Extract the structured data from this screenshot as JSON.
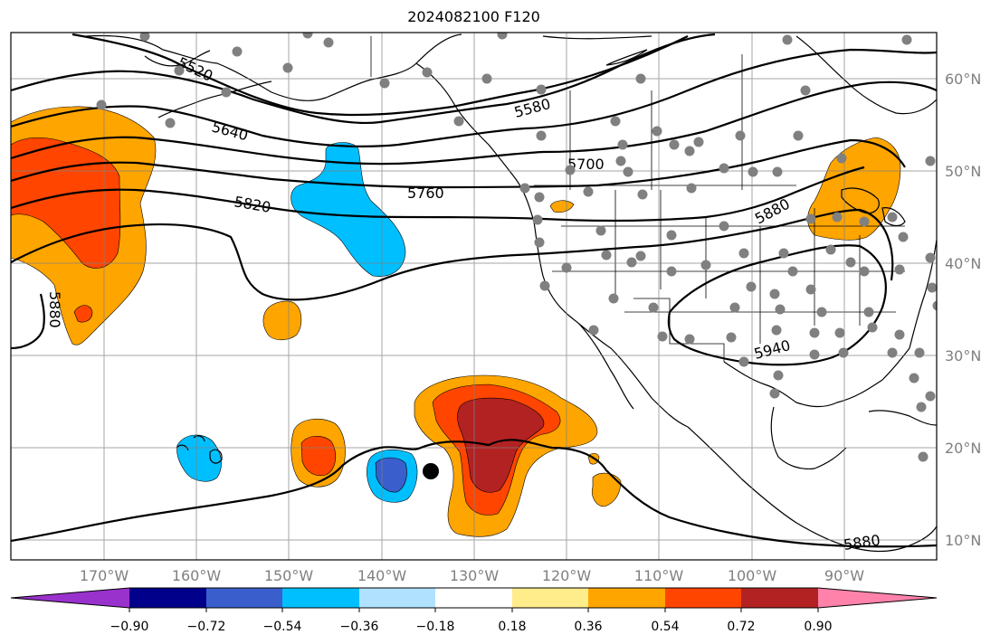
{
  "title": "2024082100 F120",
  "map": {
    "lon_range": [
      -180,
      -80
    ],
    "lat_range": [
      8,
      65
    ],
    "grid": true,
    "lon_labels": [
      "170°W",
      "160°W",
      "150°W",
      "140°W",
      "130°W",
      "120°W",
      "110°W",
      "100°W",
      "90°W"
    ],
    "lat_labels": [
      "60°N",
      "50°N",
      "40°N",
      "30°N",
      "20°N",
      "10°N"
    ],
    "contour_labels": [
      "5520",
      "5580",
      "5640",
      "5700",
      "5760",
      "5820",
      "5880",
      "5880",
      "5940",
      "5880"
    ],
    "colors": {
      "c_m090": "#9932cc",
      "c_m072": "#00008b",
      "c_m054": "#3a5fcd",
      "c_m036": "#00bfff",
      "c_m018": "#b0e2ff",
      "c_0": "#ffffff",
      "c_p018": "#ffec8b",
      "c_p036": "#ffa500",
      "c_p054": "#ff4500",
      "c_p072": "#b22222",
      "c_p090": "#ff82ab",
      "station": "#808080",
      "marker": "#000000"
    }
  },
  "colorbar": {
    "ticks": [
      "−0.90",
      "−0.72",
      "−0.54",
      "−0.36",
      "−0.18",
      "0.18",
      "0.36",
      "0.54",
      "0.72",
      "0.90"
    ]
  }
}
